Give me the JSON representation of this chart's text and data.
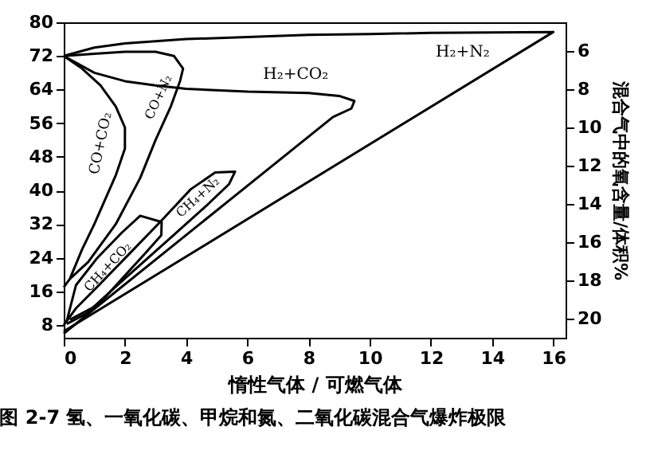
{
  "chart_data": {
    "type": "line",
    "xlabel": "惰性气体 / 可燃气体",
    "y2label": "混合气中的氧含量/体积%",
    "annotations": [
      "图 2-7  氢、一氧化碳、甲烷和氮、二氧化碳混合气爆炸极限"
    ],
    "xlim": [
      0,
      16.4
    ],
    "xticks": [
      0,
      2,
      4,
      6,
      8,
      10,
      12,
      14,
      16
    ],
    "ylim": [
      5,
      80
    ],
    "yticks": [
      8,
      16,
      24,
      32,
      40,
      48,
      56,
      64,
      72,
      80
    ],
    "y2lim": [
      21,
      4.5
    ],
    "y2ticks": [
      6,
      8,
      10,
      12,
      14,
      16,
      18,
      20
    ],
    "grid": false,
    "marker": "none",
    "line_style": "solid",
    "series": [
      {
        "name": "H₂+N₂",
        "color": "#000000",
        "x": [
          0,
          1,
          2,
          4,
          6,
          8,
          10,
          12,
          14,
          16,
          0
        ],
        "values": [
          72,
          74,
          75,
          76,
          76.5,
          77,
          77.2,
          77.5,
          77.6,
          77.7,
          6.5
        ]
      },
      {
        "name": "H₂+CO₂",
        "color": "#000000",
        "x": [
          0,
          1,
          2,
          3,
          4,
          6,
          8,
          9,
          9.5,
          9.4,
          8.8,
          0
        ],
        "values": [
          72,
          68,
          66,
          65,
          64.2,
          63.5,
          63.2,
          62.5,
          61.3,
          59.5,
          57.5,
          6
        ]
      },
      {
        "name": "CO+CO₂",
        "color": "#000000",
        "x": [
          0,
          0.6,
          1.2,
          1.7,
          2.0,
          2.0,
          1.7,
          1.3,
          1.0,
          0.6,
          0.2,
          0
        ],
        "values": [
          72,
          69,
          65,
          60,
          55,
          50,
          43.6,
          37,
          32,
          26,
          19,
          17
        ]
      },
      {
        "name": "CO+N₂",
        "color": "#000000",
        "x": [
          0,
          1,
          2,
          3,
          3.6,
          3.9,
          3.8,
          3.5,
          3.0,
          2.5,
          1.7,
          0.8,
          0.2
        ],
        "values": [
          72,
          72.5,
          73,
          73,
          72,
          69,
          66,
          60,
          52,
          43,
          32,
          23,
          19
        ]
      },
      {
        "name": "CH₄+CO₂",
        "color": "#000000",
        "x": [
          0.1,
          0.4,
          1.1,
          1.9,
          2.5,
          3.2,
          3.19,
          2.64,
          1.89,
          1.14,
          0.2
        ],
        "values": [
          9,
          17.5,
          24,
          30,
          34,
          32.5,
          29.4,
          24.9,
          18.9,
          12.9,
          9.3
        ]
      },
      {
        "name": "CH₄+N₂",
        "color": "#000000",
        "x": [
          0,
          0.4,
          1.15,
          2.15,
          3.15,
          4.15,
          4.95,
          5.6,
          5.4,
          4.65,
          3.65,
          2.65,
          1.65,
          0.75,
          0.1
        ],
        "values": [
          8,
          12,
          17.5,
          25,
          32.5,
          40.3,
          44.3,
          44.5,
          41.5,
          36.3,
          29.8,
          23.3,
          16.8,
          10.8,
          8.3
        ]
      }
    ]
  }
}
